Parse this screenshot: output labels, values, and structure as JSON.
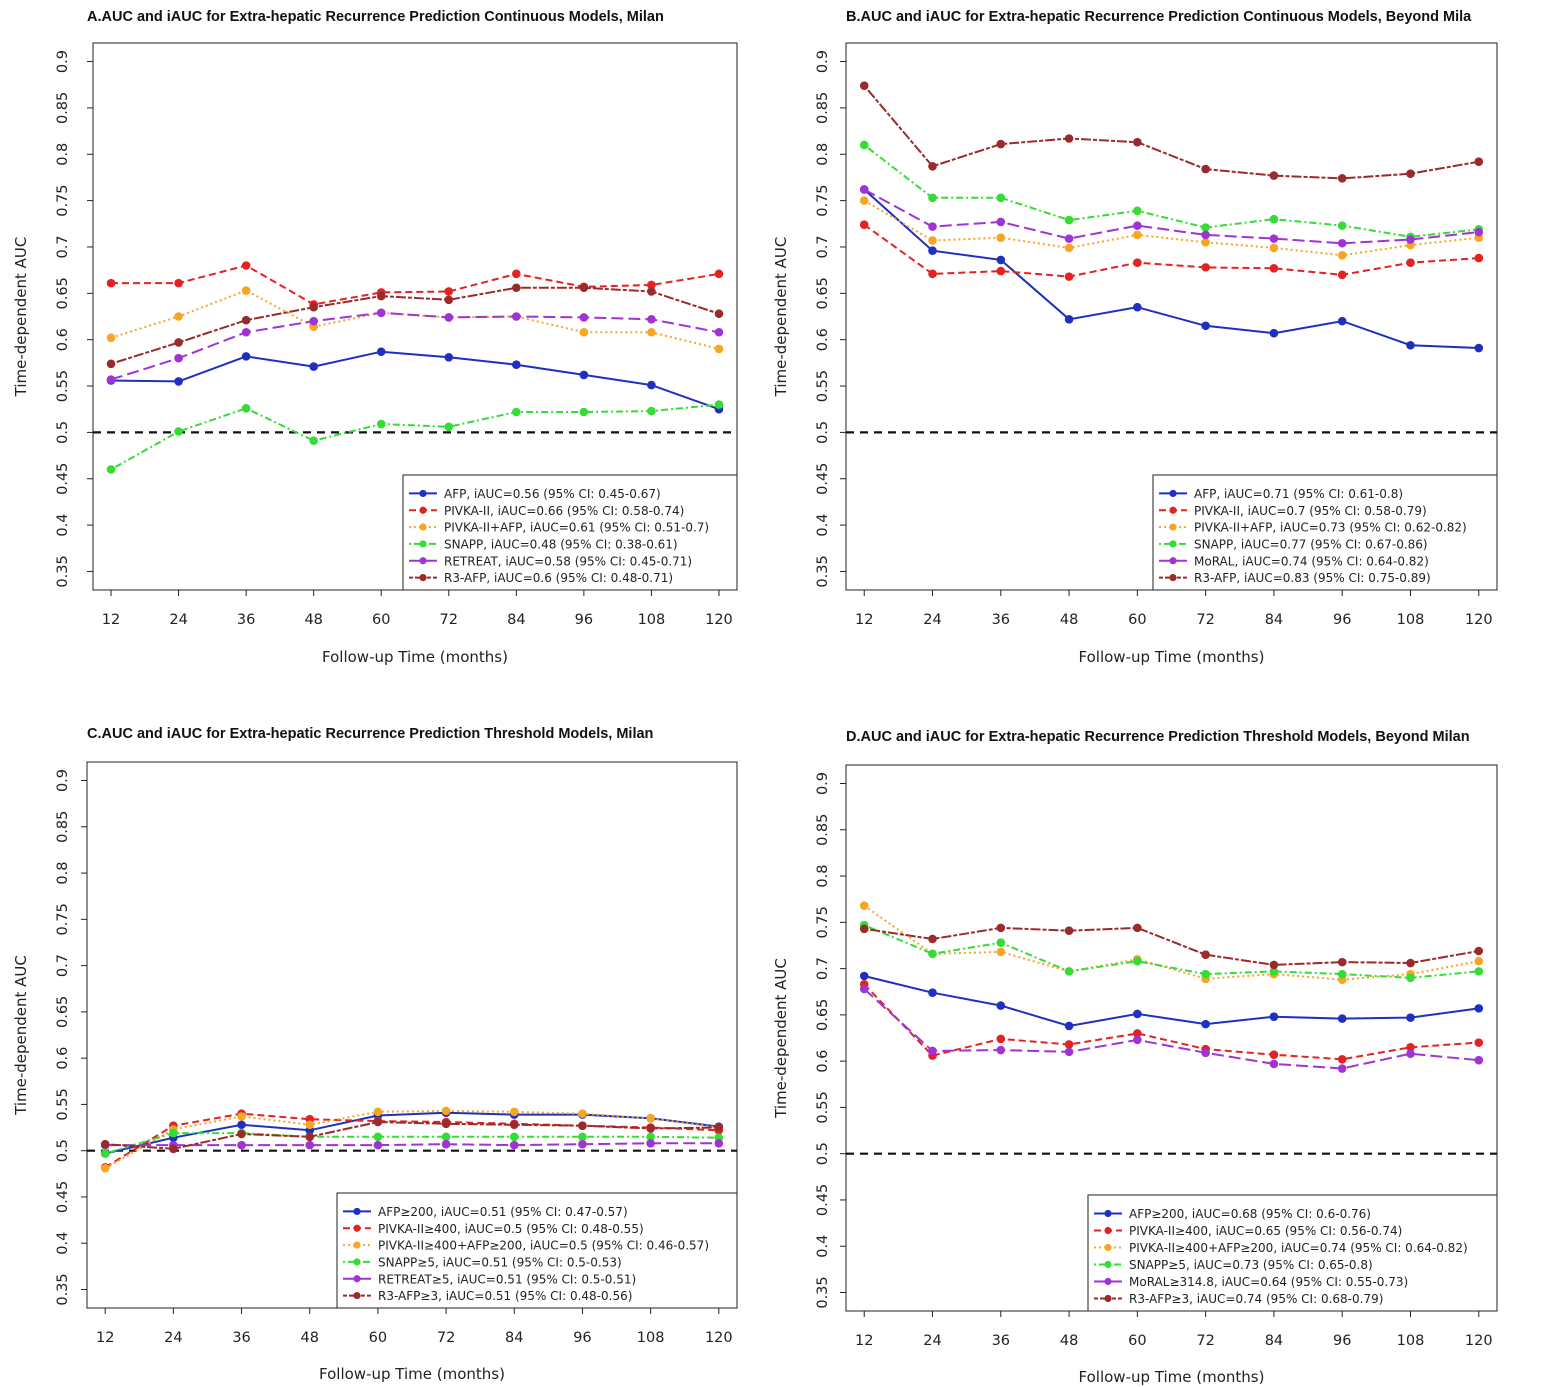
{
  "chart_data": [
    {
      "type": "line",
      "title": "A.AUC and iAUC for Extra-hepatic Recurrence Prediction Continuous Models, Milan",
      "xlabel": "Follow-up Time (months)",
      "ylabel": "Time-dependent AUC",
      "x": [
        12,
        24,
        36,
        48,
        60,
        72,
        84,
        96,
        108,
        120
      ],
      "xticks": [
        "12",
        "24",
        "36",
        "48",
        "60",
        "72",
        "84",
        "96",
        "108",
        "120"
      ],
      "yticks": [
        "0.35",
        "0.4",
        "0.45",
        "0.5",
        "0.55",
        "0.6",
        "0.65",
        "0.7",
        "0.75",
        "0.8",
        "0.85",
        "0.9"
      ],
      "ylim": [
        0.33,
        0.92
      ],
      "reference_line": 0.5,
      "legend_position": "bottom-right",
      "series": [
        {
          "name": "AFP, iAUC=0.56 (95% CI: 0.45-0.67)",
          "color": "#1f2fbf",
          "style": "solid",
          "values": [
            0.556,
            0.555,
            0.582,
            0.571,
            0.587,
            0.581,
            0.573,
            0.562,
            0.551,
            0.525
          ]
        },
        {
          "name": "PIVKA-II, iAUC=0.66 (95% CI: 0.58-0.74)",
          "color": "#e32222",
          "style": "dashed",
          "values": [
            0.661,
            0.661,
            0.68,
            0.638,
            0.651,
            0.652,
            0.671,
            0.657,
            0.659,
            0.671
          ]
        },
        {
          "name": "PIVKA-II+AFP, iAUC=0.61 (95% CI: 0.51-0.7)",
          "color": "#f5a623",
          "style": "dotted",
          "values": [
            0.602,
            0.625,
            0.653,
            0.614,
            0.629,
            0.624,
            0.625,
            0.608,
            0.608,
            0.59
          ]
        },
        {
          "name": "SNAPP, iAUC=0.48 (95% CI: 0.38-0.61)",
          "color": "#33dd33",
          "style": "dotdash",
          "values": [
            0.46,
            0.501,
            0.526,
            0.491,
            0.509,
            0.506,
            0.522,
            0.522,
            0.523,
            0.53
          ]
        },
        {
          "name": "RETREAT, iAUC=0.58 (95% CI: 0.45-0.71)",
          "color": "#a033d6",
          "style": "longdash",
          "values": [
            0.557,
            0.58,
            0.608,
            0.62,
            0.629,
            0.624,
            0.625,
            0.624,
            0.622,
            0.608
          ]
        },
        {
          "name": "R3-AFP, iAUC=0.6 (95% CI: 0.48-0.71)",
          "color": "#9b2a2a",
          "style": "twodash",
          "values": [
            0.574,
            0.597,
            0.621,
            0.635,
            0.647,
            0.643,
            0.656,
            0.656,
            0.652,
            0.628
          ]
        }
      ]
    },
    {
      "type": "line",
      "title": "B.AUC and iAUC for Extra-hepatic Recurrence Prediction Continuous Models, Beyond Mila",
      "xlabel": "Follow-up Time (months)",
      "ylabel": "Time-dependent AUC",
      "x": [
        12,
        24,
        36,
        48,
        60,
        72,
        84,
        96,
        108,
        120
      ],
      "xticks": [
        "12",
        "24",
        "36",
        "48",
        "60",
        "72",
        "84",
        "96",
        "108",
        "120"
      ],
      "yticks": [
        "0.35",
        "0.4",
        "0.45",
        "0.5",
        "0.55",
        "0.6",
        "0.65",
        "0.7",
        "0.75",
        "0.8",
        "0.85",
        "0.9"
      ],
      "ylim": [
        0.33,
        0.92
      ],
      "reference_line": 0.5,
      "legend_position": "bottom-right",
      "series": [
        {
          "name": "AFP, iAUC=0.71 (95% CI: 0.61-0.8)",
          "color": "#1f2fbf",
          "style": "solid",
          "values": [
            0.762,
            0.696,
            0.686,
            0.622,
            0.635,
            0.615,
            0.607,
            0.62,
            0.594,
            0.591
          ]
        },
        {
          "name": "PIVKA-II, iAUC=0.7 (95% CI: 0.58-0.79)",
          "color": "#e32222",
          "style": "dashed",
          "values": [
            0.724,
            0.671,
            0.674,
            0.668,
            0.683,
            0.678,
            0.677,
            0.67,
            0.683,
            0.688
          ]
        },
        {
          "name": "PIVKA-II+AFP, iAUC=0.73 (95% CI: 0.62-0.82)",
          "color": "#f5a623",
          "style": "dotted",
          "values": [
            0.75,
            0.707,
            0.71,
            0.699,
            0.713,
            0.705,
            0.699,
            0.691,
            0.702,
            0.71
          ]
        },
        {
          "name": "SNAPP, iAUC=0.77 (95% CI: 0.67-0.86)",
          "color": "#33dd33",
          "style": "dotdash",
          "values": [
            0.81,
            0.753,
            0.753,
            0.729,
            0.739,
            0.721,
            0.73,
            0.723,
            0.711,
            0.719
          ]
        },
        {
          "name": "MoRAL, iAUC=0.74 (95% CI: 0.64-0.82)",
          "color": "#a033d6",
          "style": "longdash",
          "values": [
            0.762,
            0.722,
            0.727,
            0.709,
            0.723,
            0.713,
            0.709,
            0.704,
            0.708,
            0.716
          ]
        },
        {
          "name": "R3-AFP, iAUC=0.83 (95% CI: 0.75-0.89)",
          "color": "#9b2a2a",
          "style": "twodash",
          "values": [
            0.874,
            0.787,
            0.811,
            0.817,
            0.813,
            0.784,
            0.777,
            0.774,
            0.779,
            0.792
          ]
        }
      ]
    },
    {
      "type": "line",
      "title": "C.AUC and iAUC for Extra-hepatic Recurrence Prediction Threshold Models, Milan",
      "xlabel": "Follow-up Time (months)",
      "ylabel": "Time-dependent AUC",
      "x": [
        12,
        24,
        36,
        48,
        60,
        72,
        84,
        96,
        108,
        120
      ],
      "xticks": [
        "12",
        "24",
        "36",
        "48",
        "60",
        "72",
        "84",
        "96",
        "108",
        "120"
      ],
      "yticks": [
        "0.35",
        "0.4",
        "0.45",
        "0.5",
        "0.55",
        "0.6",
        "0.65",
        "0.7",
        "0.75",
        "0.8",
        "0.85",
        "0.9"
      ],
      "ylim": [
        0.33,
        0.92
      ],
      "reference_line": 0.5,
      "legend_position": "bottom-right",
      "series": [
        {
          "name": "AFP≥200, iAUC=0.51 (95% CI: 0.47-0.57)",
          "color": "#1f2fbf",
          "style": "solid",
          "values": [
            0.497,
            0.514,
            0.528,
            0.522,
            0.538,
            0.541,
            0.539,
            0.539,
            0.535,
            0.526
          ]
        },
        {
          "name": "PIVKA-II≥400, iAUC=0.5 (95% CI: 0.48-0.55)",
          "color": "#e32222",
          "style": "dashed",
          "values": [
            0.482,
            0.527,
            0.54,
            0.534,
            0.532,
            0.531,
            0.529,
            0.527,
            0.525,
            0.522
          ]
        },
        {
          "name": "PIVKA-II≥400+AFP≥200, iAUC=0.5 (95% CI: 0.46-0.57)",
          "color": "#f5a623",
          "style": "dotted",
          "values": [
            0.481,
            0.523,
            0.537,
            0.528,
            0.542,
            0.543,
            0.542,
            0.54,
            0.535,
            0.525
          ]
        },
        {
          "name": "SNAPP≥5, iAUC=0.51 (95% CI: 0.5-0.53)",
          "color": "#33dd33",
          "style": "dotdash",
          "values": [
            0.497,
            0.519,
            0.519,
            0.515,
            0.515,
            0.515,
            0.515,
            0.515,
            0.515,
            0.514
          ]
        },
        {
          "name": "RETREAT≥5, iAUC=0.51 (95% CI: 0.5-0.51)",
          "color": "#a033d6",
          "style": "longdash",
          "values": [
            0.506,
            0.506,
            0.506,
            0.506,
            0.506,
            0.507,
            0.506,
            0.507,
            0.508,
            0.508
          ]
        },
        {
          "name": "R3-AFP≥3, iAUC=0.51 (95% CI: 0.48-0.56)",
          "color": "#9b2a2a",
          "style": "twodash",
          "values": [
            0.507,
            0.502,
            0.518,
            0.515,
            0.531,
            0.529,
            0.528,
            0.527,
            0.524,
            0.525
          ]
        }
      ]
    },
    {
      "type": "line",
      "title": "D.AUC and iAUC for Extra-hepatic Recurrence Prediction Threshold Models, Beyond Milan",
      "xlabel": "Follow-up Time (months)",
      "ylabel": "Time-dependent AUC",
      "x": [
        12,
        24,
        36,
        48,
        60,
        72,
        84,
        96,
        108,
        120
      ],
      "xticks": [
        "12",
        "24",
        "36",
        "48",
        "60",
        "72",
        "84",
        "96",
        "108",
        "120"
      ],
      "yticks": [
        "0.35",
        "0.4",
        "0.45",
        "0.5",
        "0.55",
        "0.6",
        "0.65",
        "0.7",
        "0.75",
        "0.8",
        "0.85",
        "0.9"
      ],
      "ylim": [
        0.33,
        0.92
      ],
      "reference_line": 0.5,
      "legend_position": "bottom-right",
      "series": [
        {
          "name": "AFP≥200, iAUC=0.68 (95% CI: 0.6-0.76)",
          "color": "#1f2fbf",
          "style": "solid",
          "values": [
            0.692,
            0.674,
            0.66,
            0.638,
            0.651,
            0.64,
            0.648,
            0.646,
            0.647,
            0.657
          ]
        },
        {
          "name": "PIVKA-II≥400, iAUC=0.65 (95% CI: 0.56-0.74)",
          "color": "#e32222",
          "style": "dashed",
          "values": [
            0.683,
            0.606,
            0.624,
            0.618,
            0.63,
            0.613,
            0.607,
            0.602,
            0.615,
            0.62
          ]
        },
        {
          "name": "PIVKA-II≥400+AFP≥200, iAUC=0.74 (95% CI: 0.64-0.82)",
          "color": "#f5a623",
          "style": "dotted",
          "values": [
            0.768,
            0.716,
            0.718,
            0.697,
            0.71,
            0.689,
            0.694,
            0.688,
            0.694,
            0.708
          ]
        },
        {
          "name": "SNAPP≥5, iAUC=0.73 (95% CI: 0.65-0.8)",
          "color": "#33dd33",
          "style": "dotdash",
          "values": [
            0.747,
            0.716,
            0.728,
            0.697,
            0.708,
            0.694,
            0.697,
            0.694,
            0.69,
            0.697
          ]
        },
        {
          "name": "MoRAL≥314.8, iAUC=0.64 (95% CI: 0.55-0.73)",
          "color": "#a033d6",
          "style": "longdash",
          "values": [
            0.678,
            0.611,
            0.612,
            0.61,
            0.623,
            0.609,
            0.597,
            0.592,
            0.608,
            0.601
          ]
        },
        {
          "name": "R3-AFP≥3, iAUC=0.74 (95% CI: 0.68-0.79)",
          "color": "#9b2a2a",
          "style": "twodash",
          "values": [
            0.743,
            0.732,
            0.744,
            0.741,
            0.744,
            0.715,
            0.704,
            0.707,
            0.706,
            0.719
          ]
        }
      ]
    }
  ]
}
